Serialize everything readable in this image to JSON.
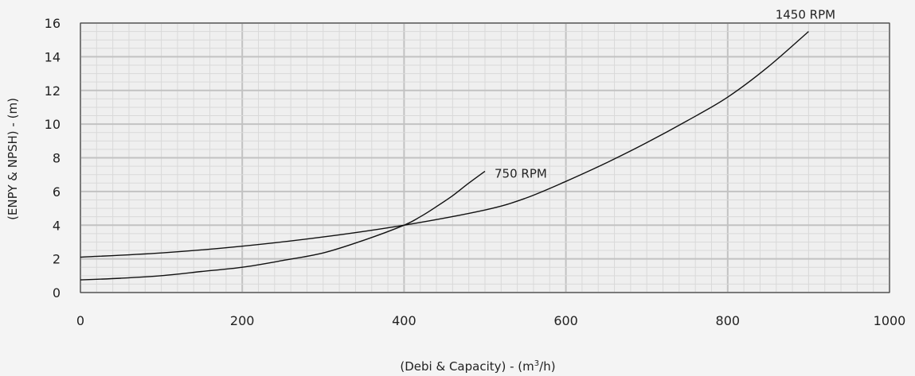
{
  "chart_data": {
    "type": "line",
    "xlabel_prefix": "(Debi & Capacity) - (m",
    "xlabel_sup": "3",
    "xlabel_suffix": "/h)",
    "ylabel": "(ENPY & NPSH) - (m)",
    "xlim": [
      0,
      1000
    ],
    "ylim": [
      0,
      16
    ],
    "x_ticks": [
      "0",
      "200",
      "400",
      "600",
      "800",
      "1000"
    ],
    "y_ticks": [
      "0",
      "2",
      "4",
      "6",
      "8",
      "10",
      "12",
      "14",
      "16"
    ],
    "grid": true,
    "series": [
      {
        "name": "750 RPM",
        "x": [
          0,
          50,
          100,
          150,
          200,
          250,
          300,
          350,
          400,
          420,
          440,
          460,
          480,
          500
        ],
        "y": [
          0.75,
          0.85,
          1.0,
          1.25,
          1.5,
          1.9,
          2.35,
          3.1,
          4.0,
          4.5,
          5.1,
          5.75,
          6.5,
          7.2
        ]
      },
      {
        "name": "1450 RPM",
        "x": [
          0,
          100,
          200,
          300,
          400,
          500,
          550,
          600,
          650,
          700,
          750,
          800,
          850,
          900
        ],
        "y": [
          2.1,
          2.35,
          2.75,
          3.3,
          4.0,
          4.9,
          5.6,
          6.6,
          7.7,
          8.9,
          10.2,
          11.6,
          13.4,
          15.5
        ]
      }
    ]
  }
}
